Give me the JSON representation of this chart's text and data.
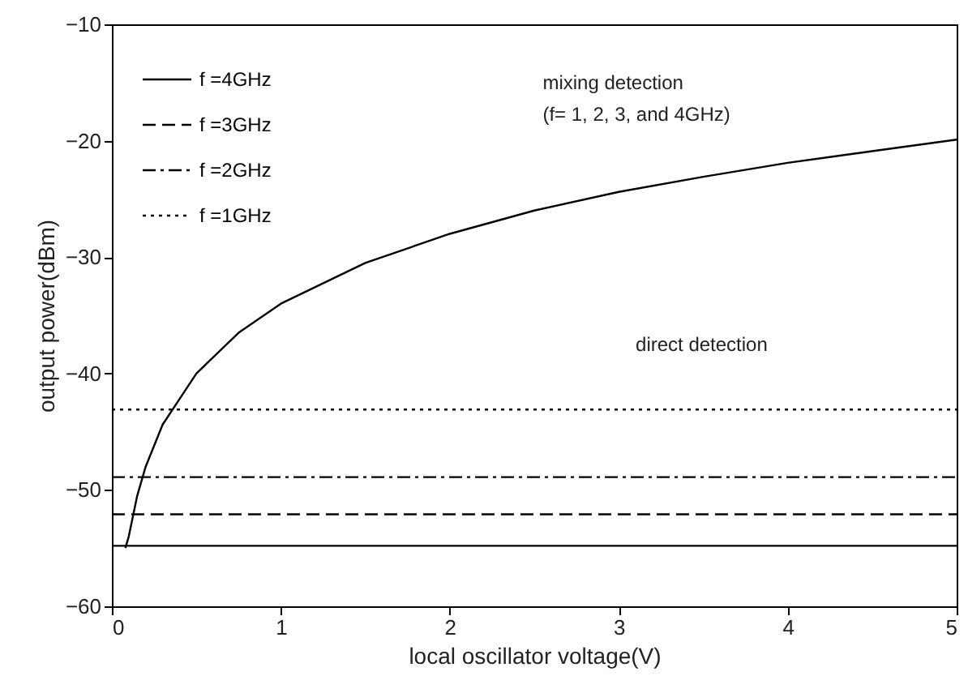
{
  "chart_data": {
    "type": "line",
    "xlabel": "local oscillator voltage(V)",
    "ylabel": "output power(dBm)",
    "xlim": [
      0,
      5
    ],
    "xticks": [
      0,
      1,
      2,
      3,
      4,
      5
    ],
    "ylim": [
      -60,
      -10
    ],
    "yticks": [
      -60,
      -50,
      -40,
      -30,
      -20,
      -10
    ],
    "legend": "top left",
    "grid": false,
    "annotations": [
      "mixing detection",
      "(f= 1, 2, 3, and 4GHz)",
      "direct detection"
    ],
    "series": [
      {
        "name": "f =4GHz",
        "color": "#000000",
        "line_style": "solid",
        "x": [
          0,
          5
        ],
        "values": [
          -54.8,
          -54.8
        ]
      },
      {
        "name": "f =3GHz",
        "color": "#000000",
        "line_style": "dashed",
        "x": [
          0,
          5
        ],
        "values": [
          -52.1,
          -52.1
        ]
      },
      {
        "name": "f =2GHz",
        "color": "#000000",
        "line_style": "dashdot",
        "x": [
          0,
          5
        ],
        "values": [
          -48.9,
          -48.9
        ]
      },
      {
        "name": "f =1GHz",
        "color": "#000000",
        "line_style": "dotted",
        "x": [
          0,
          5
        ],
        "values": [
          -43.1,
          -43.1
        ]
      },
      {
        "color": "#000000",
        "line_style": "solid",
        "x": [
          0.08,
          0.1,
          0.15,
          0.2,
          0.3,
          0.5,
          0.75,
          1,
          1.5,
          2,
          2.5,
          3,
          3.5,
          4,
          4.5,
          5
        ],
        "values": [
          -55,
          -54,
          -50.5,
          -48,
          -44.4,
          -40,
          -36.5,
          -34,
          -30.5,
          -28,
          -26,
          -24.4,
          -23.1,
          -21.9,
          -20.9,
          -19.9
        ]
      }
    ]
  }
}
